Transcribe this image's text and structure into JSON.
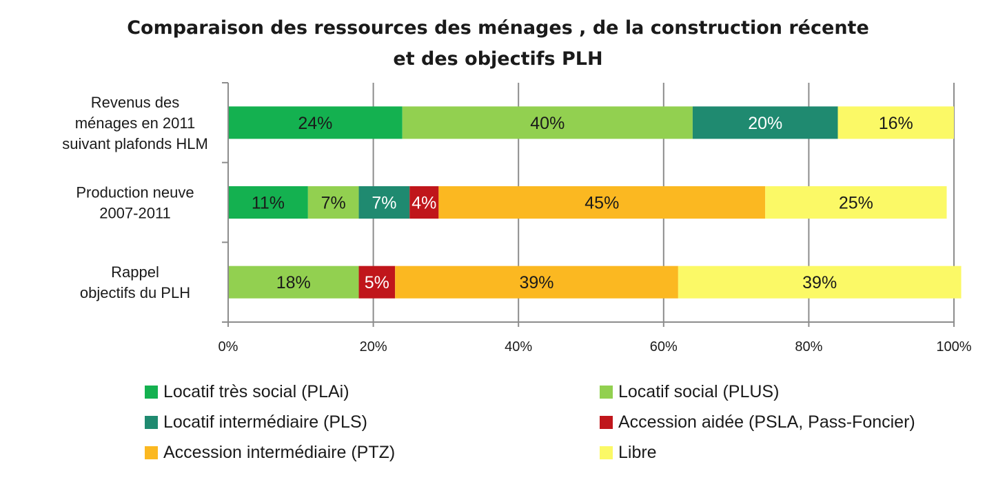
{
  "chart_data": {
    "type": "bar",
    "orientation": "horizontal",
    "stacked": true,
    "title": [
      "Comparaison des ressources des ménages , de la construction récente",
      "et des objectifs PLH"
    ],
    "categories": [
      [
        "Revenus des",
        "ménages en 2011",
        "suivant plafonds HLM"
      ],
      [
        "Production neuve",
        "2007-2011"
      ],
      [
        "Rappel",
        "objectifs du PLH"
      ]
    ],
    "xlim": [
      0,
      100
    ],
    "xticks": [
      "0%",
      "20%",
      "40%",
      "60%",
      "80%",
      "100%"
    ],
    "grid": true,
    "legend_position": "bottom",
    "series": [
      {
        "name": "Locatif très social (PLAi)",
        "color": "#14b150",
        "label_color": "#1a1a1a",
        "values": [
          24,
          11,
          0
        ],
        "labels": [
          "24%",
          "11%",
          ""
        ]
      },
      {
        "name": "Locatif social (PLUS)",
        "color": "#92d050",
        "label_color": "#1a1a1a",
        "values": [
          40,
          7,
          18
        ],
        "labels": [
          "40%",
          "7%",
          "18%"
        ]
      },
      {
        "name": "Locatif intermédiaire (PLS)",
        "color": "#1f8a70",
        "label_color": "#ffffff",
        "values": [
          20,
          7,
          0
        ],
        "labels": [
          "20%",
          "7%",
          ""
        ]
      },
      {
        "name": "Accession aidée (PSLA, Pass-Foncier)",
        "color": "#c0161b",
        "label_color": "#ffffff",
        "values": [
          0,
          4,
          5
        ],
        "labels": [
          "",
          "4%",
          "5%"
        ]
      },
      {
        "name": "Accession intermédiaire (PTZ)",
        "color": "#fbb821",
        "label_color": "#1a1a1a",
        "values": [
          0,
          45,
          39
        ],
        "labels": [
          "",
          "45%",
          "39%"
        ]
      },
      {
        "name": "Libre",
        "color": "#fbf966",
        "label_color": "#1a1a1a",
        "values": [
          16,
          25,
          39
        ],
        "labels": [
          "16%",
          "25%",
          "39%"
        ]
      }
    ]
  }
}
